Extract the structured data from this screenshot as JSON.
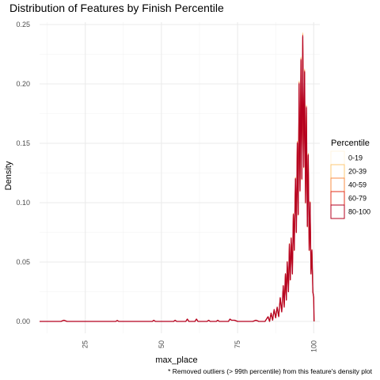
{
  "chart_data": {
    "type": "line",
    "title": "Distribution of Features by Finish Percentile",
    "xlabel": "max_place",
    "ylabel": "Density",
    "xlim": [
      10,
      102
    ],
    "ylim": [
      -0.01,
      0.252
    ],
    "x_ticks": [
      25,
      50,
      75,
      100
    ],
    "x_tick_labels": [
      "25",
      "50",
      "75",
      "100"
    ],
    "y_ticks": [
      0.0,
      0.05,
      0.1,
      0.15,
      0.2,
      0.25
    ],
    "y_tick_labels": [
      "0.00",
      "0.05",
      "0.10",
      "0.15",
      "0.20",
      "0.25"
    ],
    "grid": true,
    "legend": {
      "title": "Percentile",
      "position": "right"
    },
    "caption": "* Removed outliers (> 99th percentile) from this feature's density plot",
    "series": [
      {
        "name": "0-19",
        "color": "#fff5e0"
      },
      {
        "name": "20-39",
        "color": "#fdc876"
      },
      {
        "name": "40-59",
        "color": "#f98d46"
      },
      {
        "name": "60-79",
        "color": "#e3301b"
      },
      {
        "name": "80-100",
        "color": "#b5001f"
      }
    ],
    "density_points": [
      [
        10,
        0.0
      ],
      [
        17,
        0.0
      ],
      [
        18,
        0.001
      ],
      [
        19,
        0.0
      ],
      [
        35,
        0.0
      ],
      [
        35.5,
        0.0008
      ],
      [
        36,
        0.0
      ],
      [
        47,
        0.0
      ],
      [
        47.5,
        0.001
      ],
      [
        48,
        0.0
      ],
      [
        54,
        0.0
      ],
      [
        54.5,
        0.001
      ],
      [
        55,
        0.0
      ],
      [
        58,
        0.0
      ],
      [
        58.5,
        0.002
      ],
      [
        59,
        0.0
      ],
      [
        61,
        0.0
      ],
      [
        61.5,
        0.002
      ],
      [
        62,
        0.0
      ],
      [
        65,
        0.0
      ],
      [
        65.5,
        0.001
      ],
      [
        66,
        0.0
      ],
      [
        68,
        0.0
      ],
      [
        68.5,
        0.001
      ],
      [
        69,
        0.0
      ],
      [
        72,
        0.0
      ],
      [
        72.5,
        0.002
      ],
      [
        73,
        0.001
      ],
      [
        74,
        0.001
      ],
      [
        75,
        0.0
      ],
      [
        80,
        0.0
      ],
      [
        81,
        0.001
      ],
      [
        82,
        0.0
      ],
      [
        84,
        0.0
      ],
      [
        85,
        0.004
      ],
      [
        85.5,
        0.0
      ],
      [
        86,
        0.007
      ],
      [
        86.5,
        0.001
      ],
      [
        87,
        0.01
      ],
      [
        87.5,
        0.003
      ],
      [
        88,
        0.012
      ],
      [
        88.5,
        0.004
      ],
      [
        89,
        0.02
      ],
      [
        89.5,
        0.008
      ],
      [
        90,
        0.03
      ],
      [
        90.3,
        0.012
      ],
      [
        90.7,
        0.04
      ],
      [
        91,
        0.018
      ],
      [
        91.3,
        0.05
      ],
      [
        91.7,
        0.025
      ],
      [
        92,
        0.065
      ],
      [
        92.3,
        0.035
      ],
      [
        92.6,
        0.07
      ],
      [
        93,
        0.04
      ],
      [
        93.3,
        0.09
      ],
      [
        93.6,
        0.06
      ],
      [
        94,
        0.12
      ],
      [
        94.3,
        0.075
      ],
      [
        94.6,
        0.15
      ],
      [
        94.9,
        0.09
      ],
      [
        95.2,
        0.2
      ],
      [
        95.5,
        0.11
      ],
      [
        95.8,
        0.22
      ],
      [
        96.1,
        0.12
      ],
      [
        96.4,
        0.24
      ],
      [
        96.7,
        0.13
      ],
      [
        97,
        0.21
      ],
      [
        97.3,
        0.1
      ],
      [
        97.6,
        0.18
      ],
      [
        97.9,
        0.08
      ],
      [
        98.2,
        0.14
      ],
      [
        98.5,
        0.06
      ],
      [
        98.8,
        0.1
      ],
      [
        99.1,
        0.04
      ],
      [
        99.4,
        0.06
      ],
      [
        99.7,
        0.025
      ],
      [
        100,
        0.02
      ],
      [
        100.1,
        0.0
      ]
    ]
  }
}
